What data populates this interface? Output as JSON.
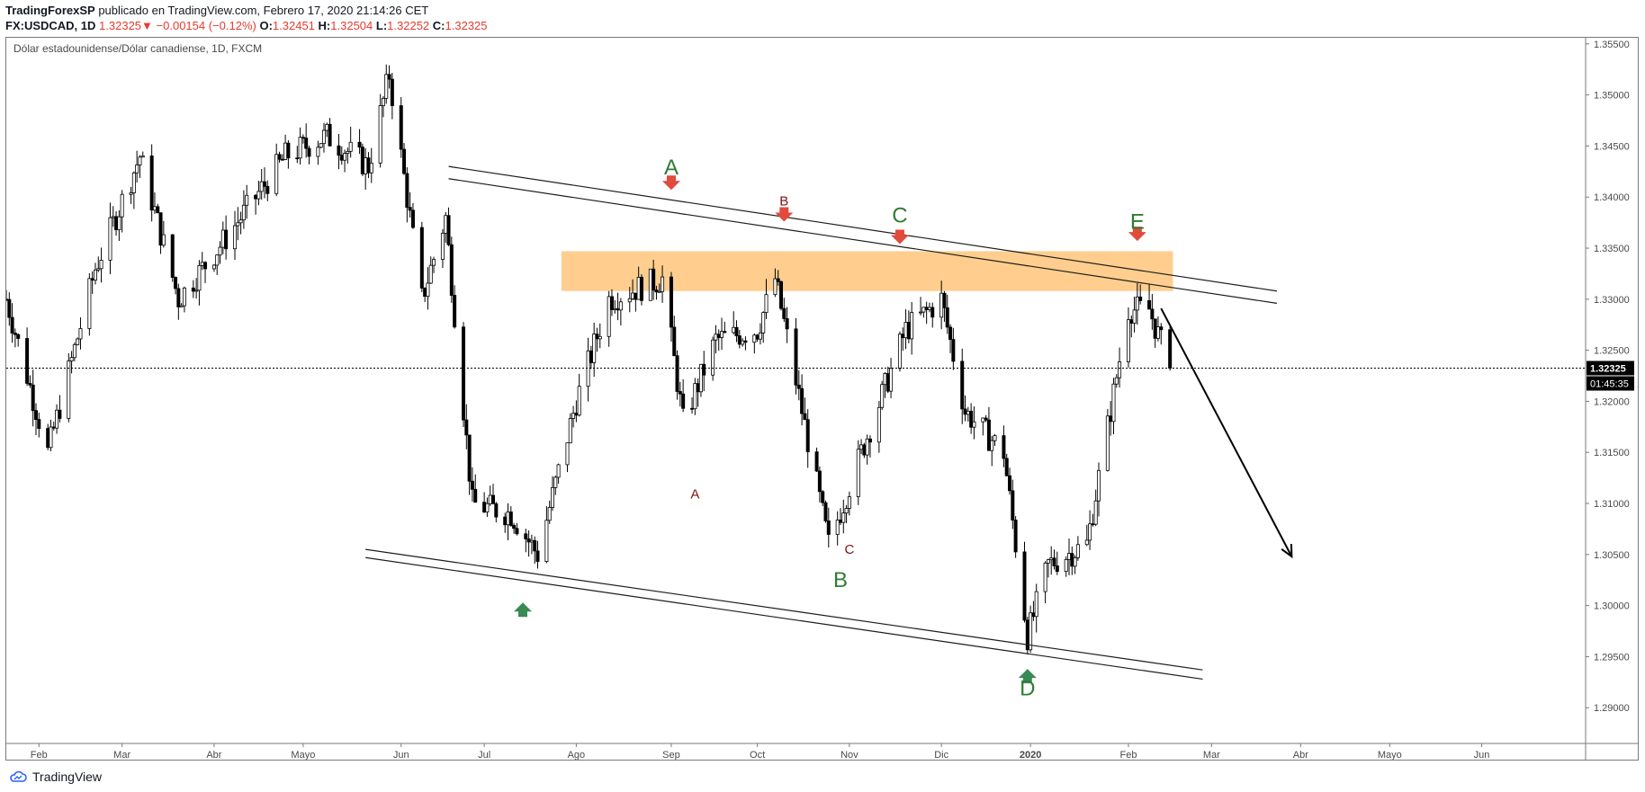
{
  "header": {
    "author": "TradingForexSP",
    "published_text": " publicado en TradingView.com, Febrero 17, 2020 21:14:26 CET",
    "symbol": "FX:USDCAD, 1D",
    "price": "1.32325",
    "change_arrow": "▼",
    "change": "−0.00154 (−0.12%)",
    "o_label": "O:",
    "o_value": "1.32451",
    "h_label": "H:",
    "h_value": "1.32504",
    "l_label": "L:",
    "l_value": "1.32252",
    "c_label": "C:",
    "c_value": "1.32325"
  },
  "footer": {
    "brand": "TradingView",
    "logo_icon": "tradingview-cloud-icon"
  },
  "colors": {
    "up": "#ffffff",
    "down": "#000000",
    "zone": "#ffc67a",
    "red_arrow": "#e14b3c",
    "green_arrow": "#3a8a55",
    "label_green": "#2f7d32",
    "label_red": "#7a1414"
  },
  "chart_data": {
    "type": "candlestick",
    "title": "Dólar estadounidense/Dólar canadiense, 1D, FXCM",
    "ylim": [
      1.2865,
      1.3556
    ],
    "y_ticks": [
      "1.35500",
      "1.35000",
      "1.34500",
      "1.34000",
      "1.33500",
      "1.33000",
      "1.32500",
      "1.32000",
      "1.31500",
      "1.31000",
      "1.30500",
      "1.30000",
      "1.29500",
      "1.29000"
    ],
    "x_ticks": [
      {
        "label": "Feb",
        "date": "2019-02-01"
      },
      {
        "label": "Mar",
        "date": "2019-03-01"
      },
      {
        "label": "Abr",
        "date": "2019-04-01"
      },
      {
        "label": "Mayo",
        "date": "2019-05-01"
      },
      {
        "label": "Jun",
        "date": "2019-06-03"
      },
      {
        "label": "Jul",
        "date": "2019-07-01"
      },
      {
        "label": "Ago",
        "date": "2019-08-01"
      },
      {
        "label": "Sep",
        "date": "2019-09-02"
      },
      {
        "label": "Oct",
        "date": "2019-10-01"
      },
      {
        "label": "Nov",
        "date": "2019-11-01"
      },
      {
        "label": "Dic",
        "date": "2019-12-02"
      },
      {
        "label": "2020",
        "date": "2020-01-01"
      },
      {
        "label": "Feb",
        "date": "2020-02-03"
      },
      {
        "label": "Mar",
        "date": "2020-03-02"
      },
      {
        "label": "Abr",
        "date": "2020-04-01"
      },
      {
        "label": "Mayo",
        "date": "2020-05-01"
      },
      {
        "label": "Jun",
        "date": "2020-06-01"
      }
    ],
    "x_range": [
      "2019-01-21",
      "2020-07-06"
    ],
    "last_price_label": "1.32325",
    "countdown_label": "01:45:35",
    "last_price": 1.32325,
    "price_path": [
      [
        "2019-01-21",
        1.33
      ],
      [
        "2019-02-04",
        1.315
      ],
      [
        "2019-02-20",
        1.333
      ],
      [
        "2019-03-07",
        1.344
      ],
      [
        "2019-03-20",
        1.33
      ],
      [
        "2019-04-05",
        1.336
      ],
      [
        "2019-04-25",
        1.344
      ],
      [
        "2019-05-09",
        1.346
      ],
      [
        "2019-05-23",
        1.343
      ],
      [
        "2019-05-30",
        1.352
      ],
      [
        "2019-06-10",
        1.33
      ],
      [
        "2019-06-18",
        1.338
      ],
      [
        "2019-06-27",
        1.31
      ],
      [
        "2019-07-10",
        1.309
      ],
      [
        "2019-07-19",
        1.305
      ],
      [
        "2019-08-01",
        1.32
      ],
      [
        "2019-08-12",
        1.33
      ],
      [
        "2019-08-30",
        1.332
      ],
      [
        "2019-09-06",
        1.318
      ],
      [
        "2019-09-17",
        1.326
      ],
      [
        "2019-10-01",
        1.327
      ],
      [
        "2019-10-07",
        1.332
      ],
      [
        "2019-10-14",
        1.322
      ],
      [
        "2019-10-25",
        1.306
      ],
      [
        "2019-11-05",
        1.315
      ],
      [
        "2019-11-20",
        1.327
      ],
      [
        "2019-12-02",
        1.33
      ],
      [
        "2019-12-10",
        1.319
      ],
      [
        "2019-12-23",
        1.315
      ],
      [
        "2019-12-31",
        1.297
      ],
      [
        "2020-01-07",
        1.304
      ],
      [
        "2020-01-20",
        1.306
      ],
      [
        "2020-02-03",
        1.329
      ],
      [
        "2020-02-10",
        1.329
      ],
      [
        "2020-02-17",
        1.32325
      ]
    ],
    "resistance_zone": {
      "from": "2019-07-27",
      "to": "2020-02-18",
      "y_top": 1.3347,
      "y_bottom": 1.3308
    },
    "trendlines": [
      {
        "from": [
          "2019-06-19",
          1.343
        ],
        "to": [
          "2020-03-24",
          1.3308
        ]
      },
      {
        "from": [
          "2019-06-19",
          1.3418
        ],
        "to": [
          "2020-03-24",
          1.3296
        ]
      },
      {
        "from": [
          "2019-05-22",
          1.3055
        ],
        "to": [
          "2020-02-28",
          1.2937
        ]
      },
      {
        "from": [
          "2019-05-22",
          1.3047
        ],
        "to": [
          "2020-02-28",
          1.2928
        ]
      }
    ],
    "projection_arrow": {
      "from": [
        "2020-02-14",
        1.3291
      ],
      "to": [
        "2020-03-29",
        1.3048
      ]
    },
    "markers": [
      {
        "type": "down-arrow",
        "date": "2019-09-02",
        "y": 1.3407,
        "label": "A",
        "label_color": "green",
        "label_y": 1.343
      },
      {
        "type": "down-arrow",
        "date": "2019-10-10",
        "y": 1.3376,
        "label": "B",
        "label_color": "red",
        "label_y": 1.3397
      },
      {
        "type": "down-arrow",
        "date": "2019-11-18",
        "y": 1.3354,
        "label": "C",
        "label_color": "green",
        "label_y": 1.3383
      },
      {
        "type": "down-arrow",
        "date": "2020-02-06",
        "y": 1.3357,
        "label": "E",
        "label_color": "green",
        "label_y": 1.3377
      },
      {
        "type": "up-arrow",
        "date": "2019-07-14",
        "y": 1.3003,
        "label": "",
        "label_color": "green",
        "label_y": 0
      },
      {
        "type": "up-arrow",
        "date": "2019-12-31",
        "y": 1.2938,
        "label": "D",
        "label_color": "green",
        "label_y": 1.292
      },
      {
        "type": "text",
        "date": "2019-09-10",
        "y": 1.311,
        "label": "A",
        "label_color": "red"
      },
      {
        "type": "text",
        "date": "2019-10-29",
        "y": 1.3026,
        "label": "B",
        "label_color": "green"
      },
      {
        "type": "text",
        "date": "2019-11-01",
        "y": 1.3056,
        "label": "C",
        "label_color": "red"
      }
    ]
  }
}
